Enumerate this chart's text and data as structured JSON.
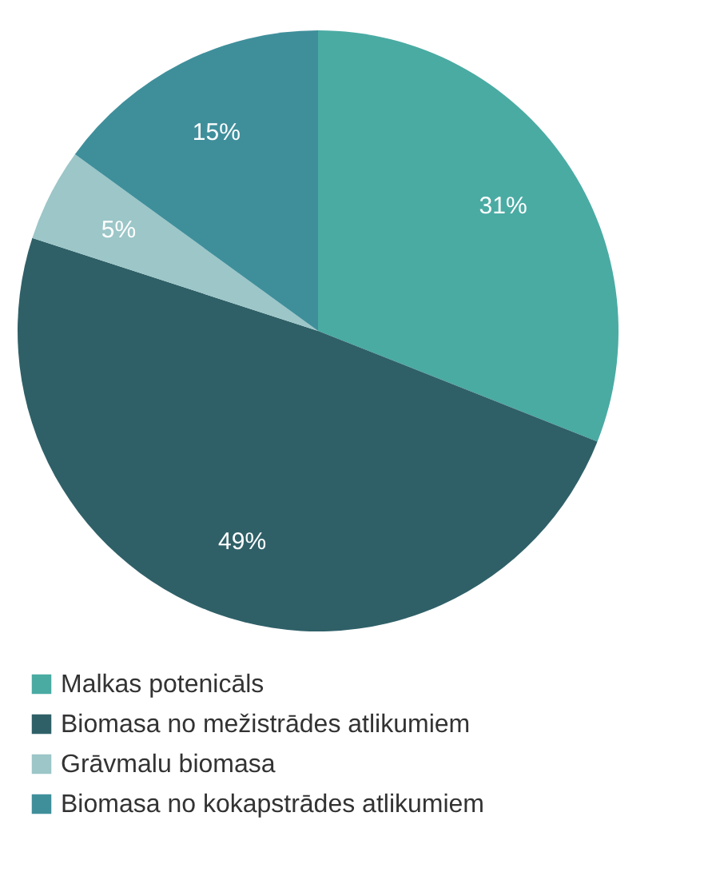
{
  "chart_data": {
    "type": "pie",
    "categories": [
      "Malkas potenicāls",
      "Biomasa no mežistrādes atlikumiem",
      "Grāvmalu biomasa",
      "Biomasa no kokapstrādes atlikumiem"
    ],
    "values": [
      31,
      49,
      5,
      15
    ],
    "colors": [
      "#4aaba3",
      "#2f6068",
      "#9cc6c8",
      "#3f8f9b"
    ],
    "value_labels": [
      "31%",
      "49%",
      "5%",
      "15%"
    ],
    "legend": "bottom"
  }
}
